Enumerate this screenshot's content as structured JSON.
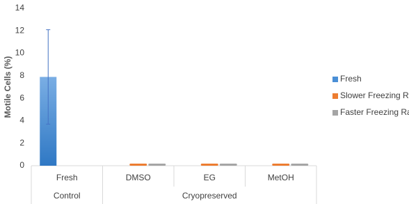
{
  "chart_data": {
    "type": "bar",
    "y_label": "Motile Cells (%)",
    "categories": [
      "Fresh",
      "DMSO",
      "EG",
      "MetOH"
    ],
    "groups": [
      {
        "name": "Control",
        "count": 1
      },
      {
        "name": "Cryopreserved",
        "count": 3
      }
    ],
    "series": [
      {
        "name": "Fresh",
        "color": "#4a8fd6",
        "values": [
          7.9,
          null,
          null,
          null
        ],
        "errors": [
          4.2,
          null,
          null,
          null
        ]
      },
      {
        "name": "Slower Freezing Ra",
        "color": "#ed7d31",
        "values": [
          null,
          0,
          0,
          0
        ]
      },
      {
        "name": "Faster Freezing Ra",
        "color": "#a5a5a5",
        "values": [
          null,
          0,
          0,
          0
        ]
      }
    ],
    "ylim": [
      0,
      14
    ],
    "yticks": [
      0,
      2,
      4,
      6,
      8,
      10,
      12,
      14
    ],
    "legend": "right"
  }
}
